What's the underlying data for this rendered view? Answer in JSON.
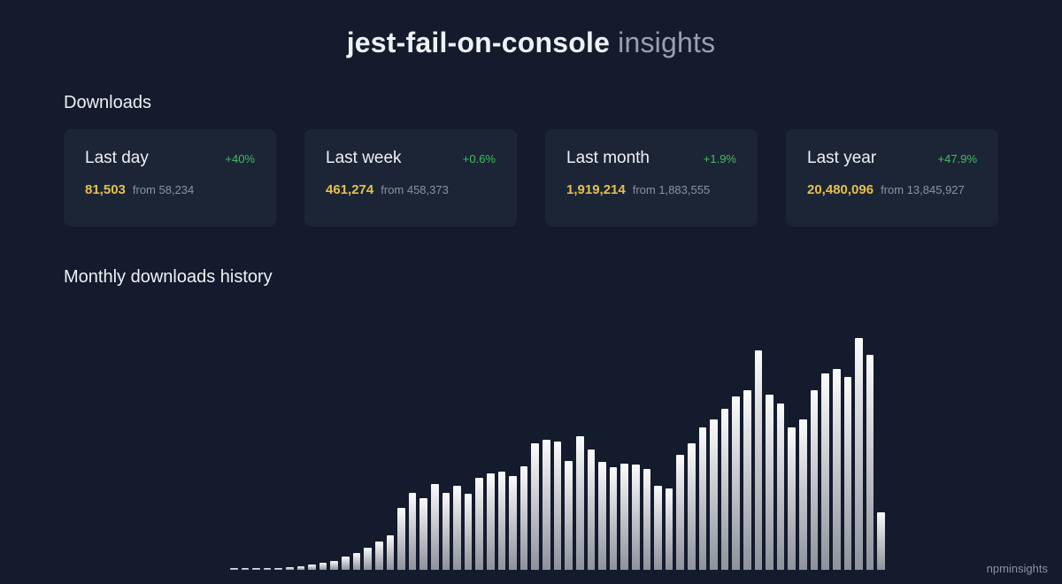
{
  "header": {
    "package": "jest-fail-on-console",
    "suffix": "insights"
  },
  "sections": {
    "downloads": "Downloads",
    "history": "Monthly downloads history"
  },
  "cards": [
    {
      "title": "Last day",
      "delta": "+40%",
      "value": "81,503",
      "from": "from 58,234"
    },
    {
      "title": "Last week",
      "delta": "+0.6%",
      "value": "461,274",
      "from": "from 458,373"
    },
    {
      "title": "Last month",
      "delta": "+1.9%",
      "value": "1,919,214",
      "from": "from 1,883,555"
    },
    {
      "title": "Last year",
      "delta": "+47.9%",
      "value": "20,480,096",
      "from": "from 13,845,927"
    }
  ],
  "footer": {
    "brand": "npminsights"
  },
  "colors": {
    "background": "#131b2c",
    "card_background": "#1c2535",
    "accent_value": "#e4c04d",
    "accent_delta": "#3fbf63",
    "muted_text": "#8b929f"
  },
  "chart_data": {
    "type": "bar",
    "title": "Monthly downloads history",
    "xlabel": "",
    "ylabel": "",
    "grid": false,
    "legend": false,
    "ylim": [
      0,
      2100000
    ],
    "values": [
      4800,
      5200,
      7500,
      9000,
      14000,
      21000,
      32000,
      45000,
      62000,
      84000,
      120000,
      150000,
      200000,
      260000,
      310000,
      560000,
      700000,
      650000,
      780000,
      700000,
      760000,
      690000,
      830000,
      870000,
      890000,
      850000,
      940000,
      1150000,
      1180000,
      1160000,
      990000,
      1210000,
      1090000,
      980000,
      930000,
      960000,
      950000,
      910000,
      760000,
      740000,
      1040000,
      1150000,
      1290000,
      1360000,
      1460000,
      1570000,
      1630000,
      1990000,
      1590000,
      1510000,
      1290000,
      1360000,
      1630000,
      1780000,
      1820000,
      1750000,
      2100000,
      1950000,
      520000
    ]
  }
}
